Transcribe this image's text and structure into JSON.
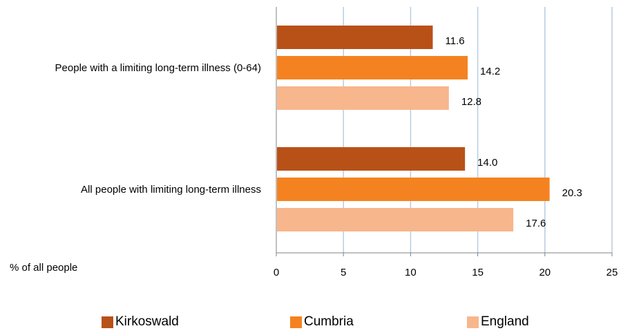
{
  "chart_data": {
    "type": "bar",
    "orientation": "horizontal",
    "categories": [
      "People with a limiting long-term illness (0-64)",
      "All people with limiting long-term illness"
    ],
    "series": [
      {
        "name": "Kirkoswald",
        "color": "#b85118",
        "values": [
          11.6,
          14.0
        ],
        "labels": [
          "11.6",
          "14.0"
        ]
      },
      {
        "name": "Cumbria",
        "color": "#f58220",
        "values": [
          14.2,
          20.3
        ],
        "labels": [
          "14.2",
          "20.3"
        ]
      },
      {
        "name": "England",
        "color": "#f8b68c",
        "values": [
          12.8,
          17.6
        ],
        "labels": [
          "12.8",
          "17.6"
        ]
      }
    ],
    "xlabel": "% of all people",
    "xlim": [
      0,
      25
    ],
    "xticks": [
      "0",
      "5",
      "10",
      "15",
      "20",
      "25"
    ],
    "grid": "vertical",
    "grid_color": "#b8cce0",
    "legend_position": "bottom"
  }
}
